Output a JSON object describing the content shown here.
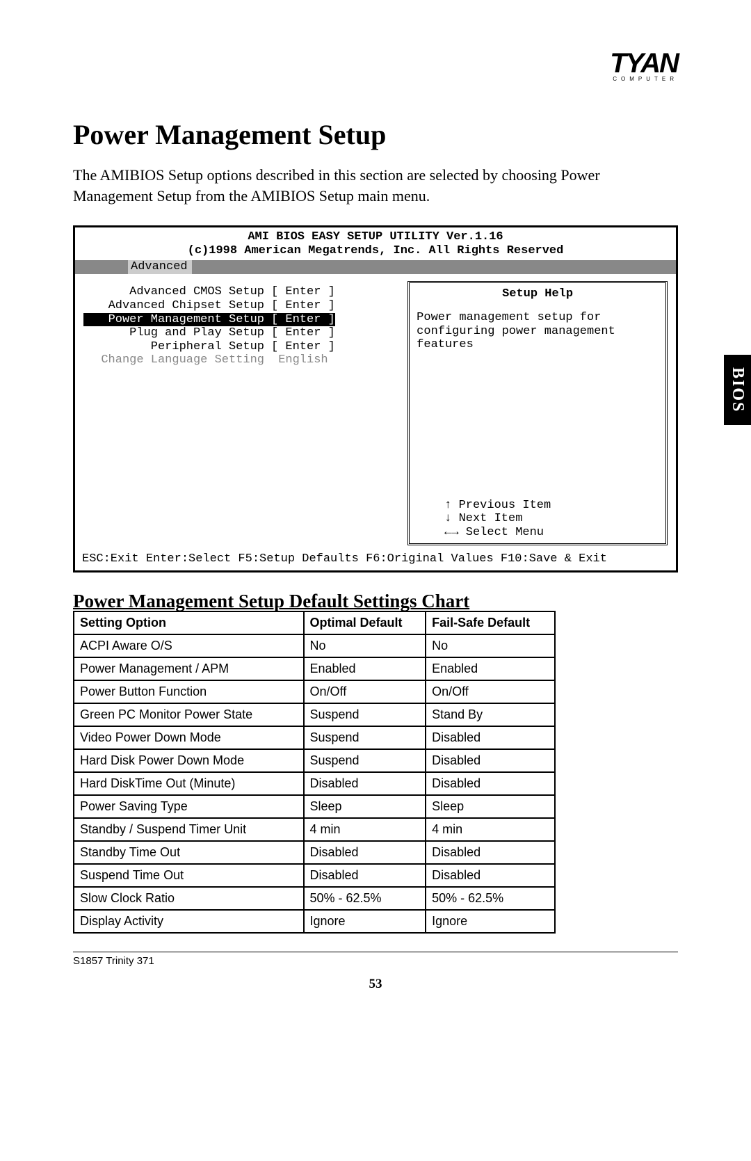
{
  "logo": {
    "main": "TYAN",
    "sub": "COMPUTER"
  },
  "page_title": "Power Management Setup",
  "intro_text": "The AMIBIOS Setup options described in this section are selected by choosing Power Management Setup from the AMIBIOS Setup main menu.",
  "side_tab": "BIOS",
  "bios": {
    "header": "AMI BIOS EASY SETUP UTILITY Ver.1.16",
    "subheader": "(c)1998 American Megatrends, Inc.  All Rights Reserved",
    "tab": "Advanced",
    "menu": [
      {
        "label": "Advanced CMOS Setup",
        "value": "[ Enter ]",
        "highlight": false,
        "dim": false
      },
      {
        "label": "Advanced Chipset Setup",
        "value": "[ Enter ]",
        "highlight": false,
        "dim": false
      },
      {
        "label": "Power Management Setup",
        "value": "[ Enter ]",
        "highlight": true,
        "dim": false
      },
      {
        "label": "Plug and Play Setup",
        "value": "[ Enter ]",
        "highlight": false,
        "dim": false
      },
      {
        "label": "Peripheral Setup",
        "value": "[ Enter ]",
        "highlight": false,
        "dim": false
      },
      {
        "label": "Change Language Setting",
        "value": " English",
        "highlight": false,
        "dim": true
      }
    ],
    "help_title": "Setup Help",
    "help_text": "Power management setup for configuring power management features",
    "nav": {
      "prev": "↑ Previous Item",
      "next": "↓ Next Item",
      "select": "←→ Select Menu"
    },
    "footer": "ESC:Exit  Enter:Select  F5:Setup Defaults  F6:Original Values  F10:Save & Exit"
  },
  "chart_title": "Power Management Setup Default Settings Chart",
  "table": {
    "columns": [
      "Setting Option",
      "Optimal Default",
      "Fail-Safe Default"
    ],
    "col_widths": [
      "320px",
      "170px",
      "180px"
    ],
    "rows": [
      [
        "ACPI Aware O/S",
        "No",
        "No"
      ],
      [
        "Power Management / APM",
        "Enabled",
        "Enabled"
      ],
      [
        "Power Button Function",
        "On/Off",
        "On/Off"
      ],
      [
        "Green PC Monitor Power State",
        "Suspend",
        "Stand By"
      ],
      [
        "Video Power Down Mode",
        "Suspend",
        "Disabled"
      ],
      [
        "Hard Disk Power Down Mode",
        "Suspend",
        "Disabled"
      ],
      [
        "Hard DiskTime Out (Minute)",
        "Disabled",
        "Disabled"
      ],
      [
        "Power Saving Type",
        "Sleep",
        "Sleep"
      ],
      [
        "Standby / Suspend Timer Unit",
        "4 min",
        "4 min"
      ],
      [
        "Standby Time Out",
        "Disabled",
        "Disabled"
      ],
      [
        "Suspend Time Out",
        "Disabled",
        "Disabled"
      ],
      [
        "Slow Clock Ratio",
        "50% - 62.5%",
        "50% - 62.5%"
      ],
      [
        "Display Activity",
        "Ignore",
        "Ignore"
      ]
    ]
  },
  "footer_text": "S1857 Trinity 371",
  "page_number": "53"
}
